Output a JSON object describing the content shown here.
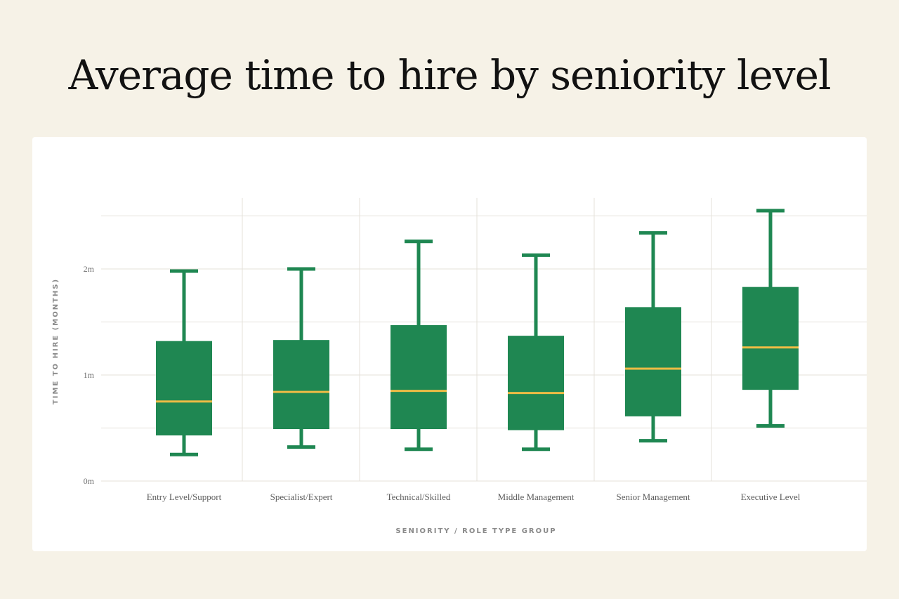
{
  "title": "Average time to hire by seniority level",
  "colors": {
    "background": "#f6f2e7",
    "card": "#ffffff",
    "box": "#1f8752",
    "median": "#eebc45",
    "grid": "#e4e1da"
  },
  "chart_data": {
    "type": "boxplot",
    "xlabel": "SENIORITY / ROLE TYPE GROUP",
    "ylabel": "TIME TO HIRE (MONTHS)",
    "ylim": [
      0,
      2.67
    ],
    "y_ticks": [
      {
        "value": 0,
        "label": "0m"
      },
      {
        "value": 1,
        "label": "1m"
      },
      {
        "value": 2,
        "label": "2m"
      }
    ],
    "grid": true,
    "categories": [
      "Entry Level/Support",
      "Specialist/Expert",
      "Technical/Skilled",
      "Middle Management",
      "Senior Management",
      "Executive Level"
    ],
    "series": [
      {
        "min": [
          0.25,
          0.32,
          0.3,
          0.3,
          0.38,
          0.52
        ],
        "q1": [
          0.43,
          0.49,
          0.49,
          0.48,
          0.61,
          0.86
        ],
        "median": [
          0.75,
          0.84,
          0.85,
          0.83,
          1.06,
          1.26
        ],
        "q3": [
          1.32,
          1.33,
          1.47,
          1.37,
          1.64,
          1.83
        ],
        "max": [
          1.98,
          2.0,
          2.26,
          2.13,
          2.34,
          2.55
        ]
      }
    ]
  }
}
